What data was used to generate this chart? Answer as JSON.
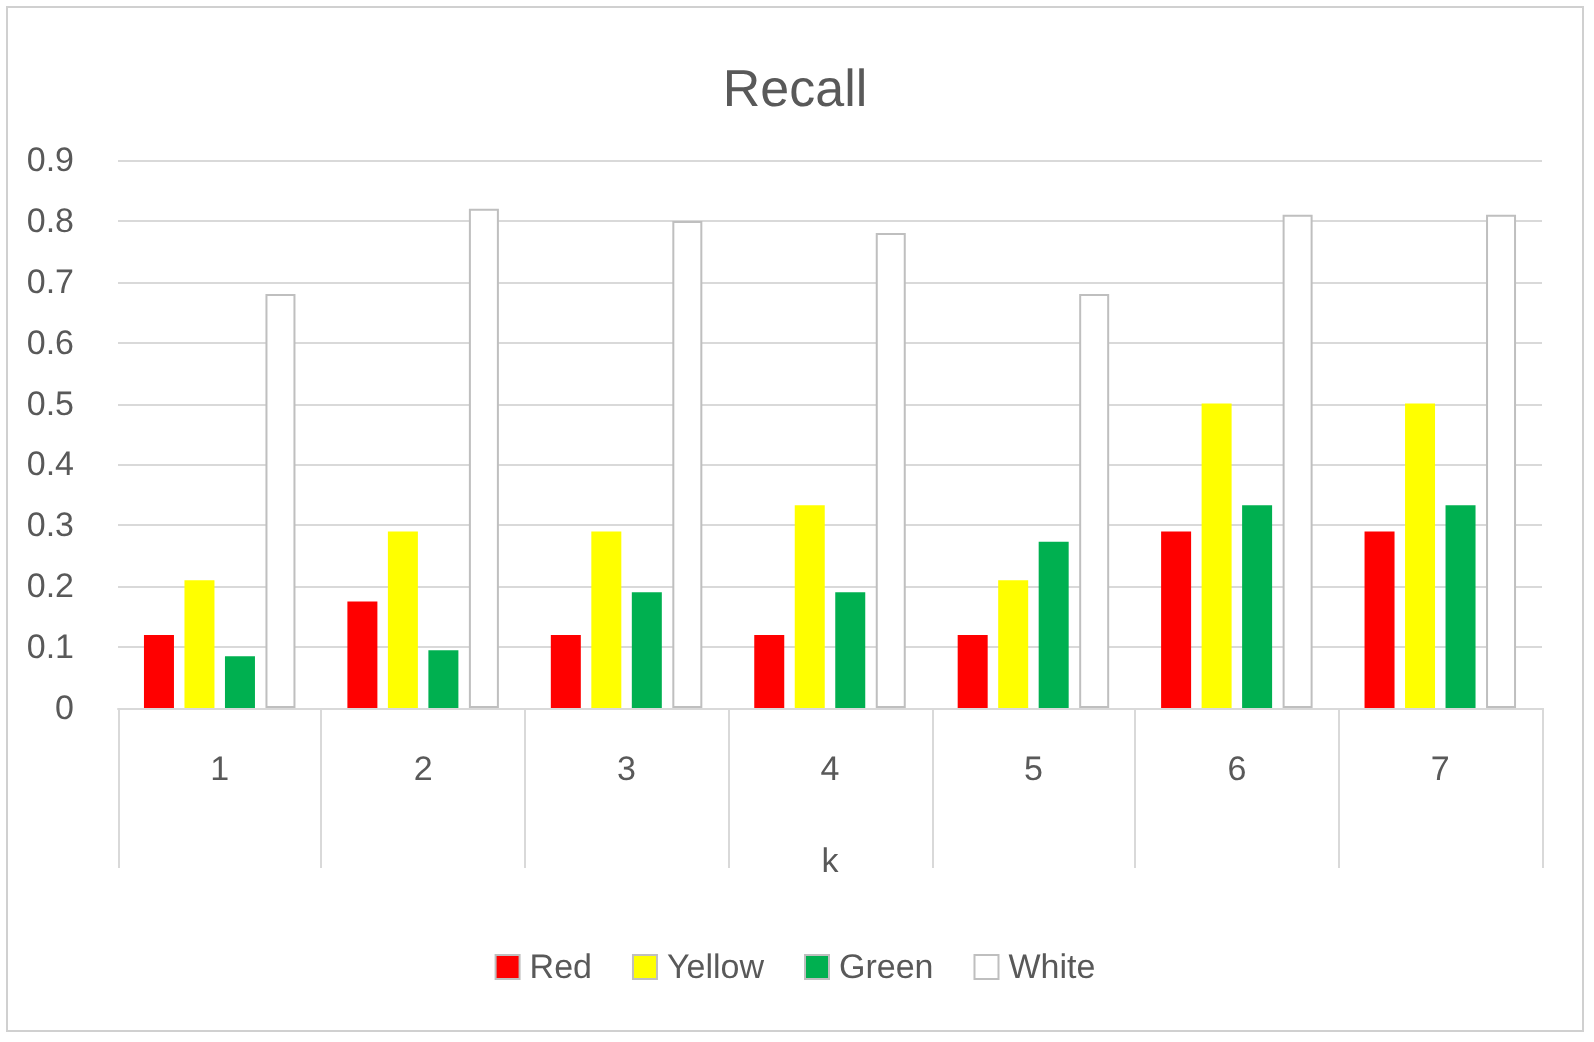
{
  "chart_data": {
    "type": "bar",
    "title": "Recall",
    "xlabel": "k",
    "categories": [
      "1",
      "2",
      "3",
      "4",
      "5",
      "6",
      "7"
    ],
    "series": [
      {
        "name": "Red",
        "color": "#ff0000",
        "values": [
          0.12,
          0.175,
          0.12,
          0.12,
          0.12,
          0.29,
          0.29
        ]
      },
      {
        "name": "Yellow",
        "color": "#ffff00",
        "values": [
          0.21,
          0.29,
          0.29,
          0.333,
          0.21,
          0.5,
          0.5
        ]
      },
      {
        "name": "Green",
        "color": "#00b050",
        "values": [
          0.085,
          0.095,
          0.19,
          0.19,
          0.273,
          0.333,
          0.333
        ]
      },
      {
        "name": "White",
        "color": "#ffffff",
        "values": [
          0.68,
          0.82,
          0.8,
          0.78,
          0.68,
          0.81,
          0.81
        ]
      }
    ],
    "ylim": [
      0,
      0.9
    ],
    "yticks": [
      0,
      0.1,
      0.2,
      0.3,
      0.4,
      0.5,
      0.6,
      0.7,
      0.8,
      0.9
    ],
    "grid": "y",
    "legend": "bottom"
  }
}
